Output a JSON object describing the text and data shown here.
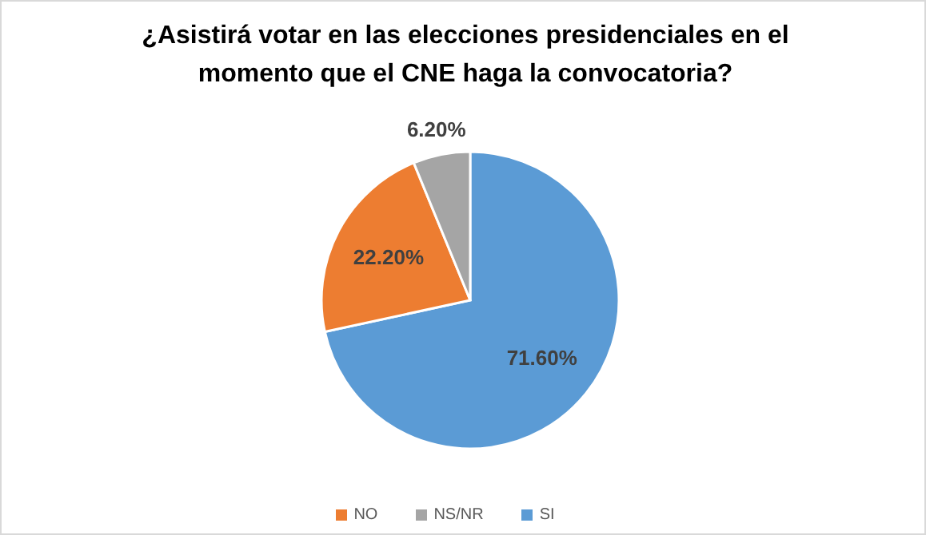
{
  "chart_data": {
    "type": "pie",
    "title": "¿Asistirá votar en las elecciones presidenciales en el momento que el CNE haga la convocatoria?",
    "categories": [
      "SI",
      "NO",
      "NS/NR"
    ],
    "values": [
      71.6,
      22.2,
      6.2
    ],
    "value_labels": [
      "71.60%",
      "22.20%",
      "6.20%"
    ],
    "colors": [
      "#5b9bd5",
      "#ed7d31",
      "#a5a5a5"
    ],
    "legend": "bottom"
  }
}
